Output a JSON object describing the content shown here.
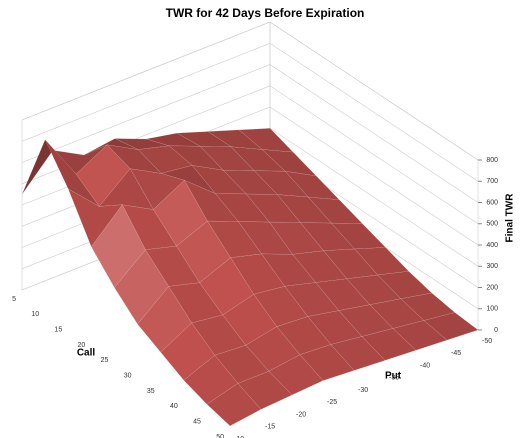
{
  "chart_data": {
    "type": "surface",
    "title": "TWR for 42 Days Before Expiration",
    "xlabel": "Call",
    "ylabel": "Put",
    "zlabel": "Final TWR",
    "x": [
      5,
      10,
      15,
      20,
      25,
      30,
      35,
      40,
      45,
      50
    ],
    "y": [
      -10,
      -15,
      -20,
      -25,
      -30,
      -35,
      -40,
      -45,
      -50
    ],
    "values": [
      [
        450,
        600,
        520,
        540,
        480,
        450,
        400,
        350,
        300
      ],
      [
        780,
        560,
        640,
        560,
        520,
        460,
        400,
        330,
        260
      ],
      [
        620,
        480,
        600,
        520,
        500,
        420,
        360,
        300,
        220
      ],
      [
        420,
        560,
        480,
        560,
        440,
        380,
        320,
        250,
        180
      ],
      [
        300,
        420,
        380,
        440,
        380,
        320,
        260,
        200,
        140
      ],
      [
        200,
        320,
        280,
        340,
        300,
        240,
        200,
        150,
        100
      ],
      [
        140,
        220,
        200,
        240,
        220,
        180,
        140,
        100,
        60
      ],
      [
        80,
        140,
        130,
        160,
        150,
        120,
        90,
        60,
        30
      ],
      [
        40,
        80,
        80,
        100,
        90,
        70,
        50,
        30,
        10
      ],
      [
        10,
        30,
        40,
        50,
        40,
        30,
        20,
        10,
        0
      ]
    ],
    "zlim": [
      0,
      800
    ],
    "zticks": [
      0,
      100,
      200,
      300,
      400,
      500,
      600,
      700,
      800
    ],
    "color": "#c0504d",
    "grid": true
  }
}
